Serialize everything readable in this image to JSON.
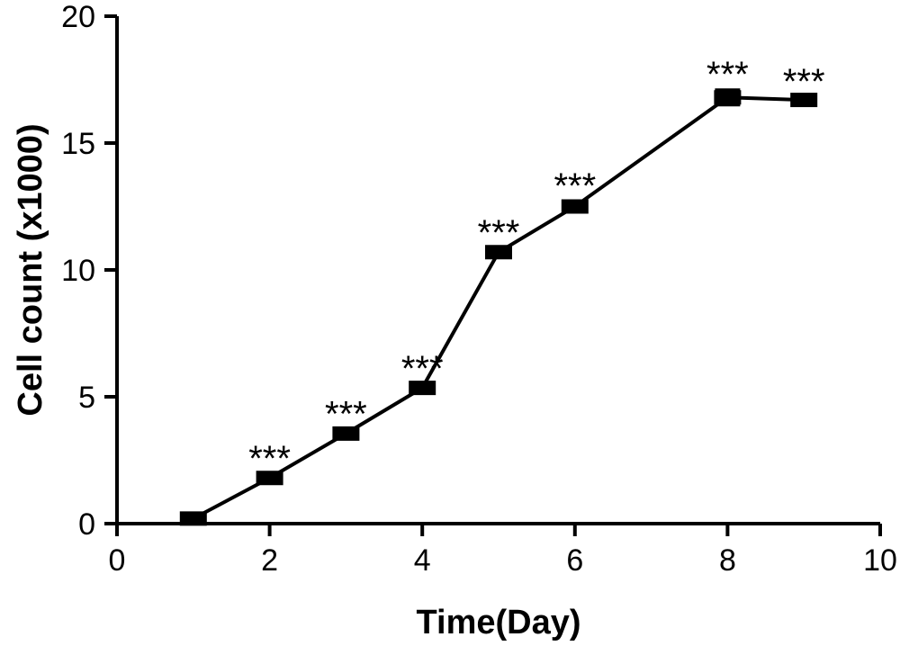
{
  "chart_data": {
    "type": "line",
    "title": "",
    "xlabel": "Time(Day)",
    "ylabel": "Cell count (x1000)",
    "xlim": [
      0,
      10
    ],
    "ylim": [
      0,
      20
    ],
    "x_ticks": [
      "0",
      "2",
      "4",
      "6",
      "8",
      "10"
    ],
    "y_ticks": [
      "0",
      "5",
      "10",
      "15",
      "20"
    ],
    "grid": false,
    "legend": "none",
    "series": [
      {
        "marker": "square",
        "color": "#000000",
        "points": [
          {
            "x": 1,
            "y": 0.2,
            "err": 0.1,
            "annotation": ""
          },
          {
            "x": 2,
            "y": 1.8,
            "err": 0.15,
            "annotation": "***"
          },
          {
            "x": 3,
            "y": 3.55,
            "err": 0.15,
            "annotation": "***"
          },
          {
            "x": 4,
            "y": 5.35,
            "err": 0.15,
            "annotation": "***"
          },
          {
            "x": 5,
            "y": 10.7,
            "err": 0.15,
            "annotation": "***"
          },
          {
            "x": 6,
            "y": 12.5,
            "err": 0.2,
            "annotation": "***"
          },
          {
            "x": 8,
            "y": 16.8,
            "err": 0.3,
            "annotation": "***"
          },
          {
            "x": 9,
            "y": 16.7,
            "err": 0.1,
            "annotation": "***"
          }
        ]
      }
    ]
  }
}
